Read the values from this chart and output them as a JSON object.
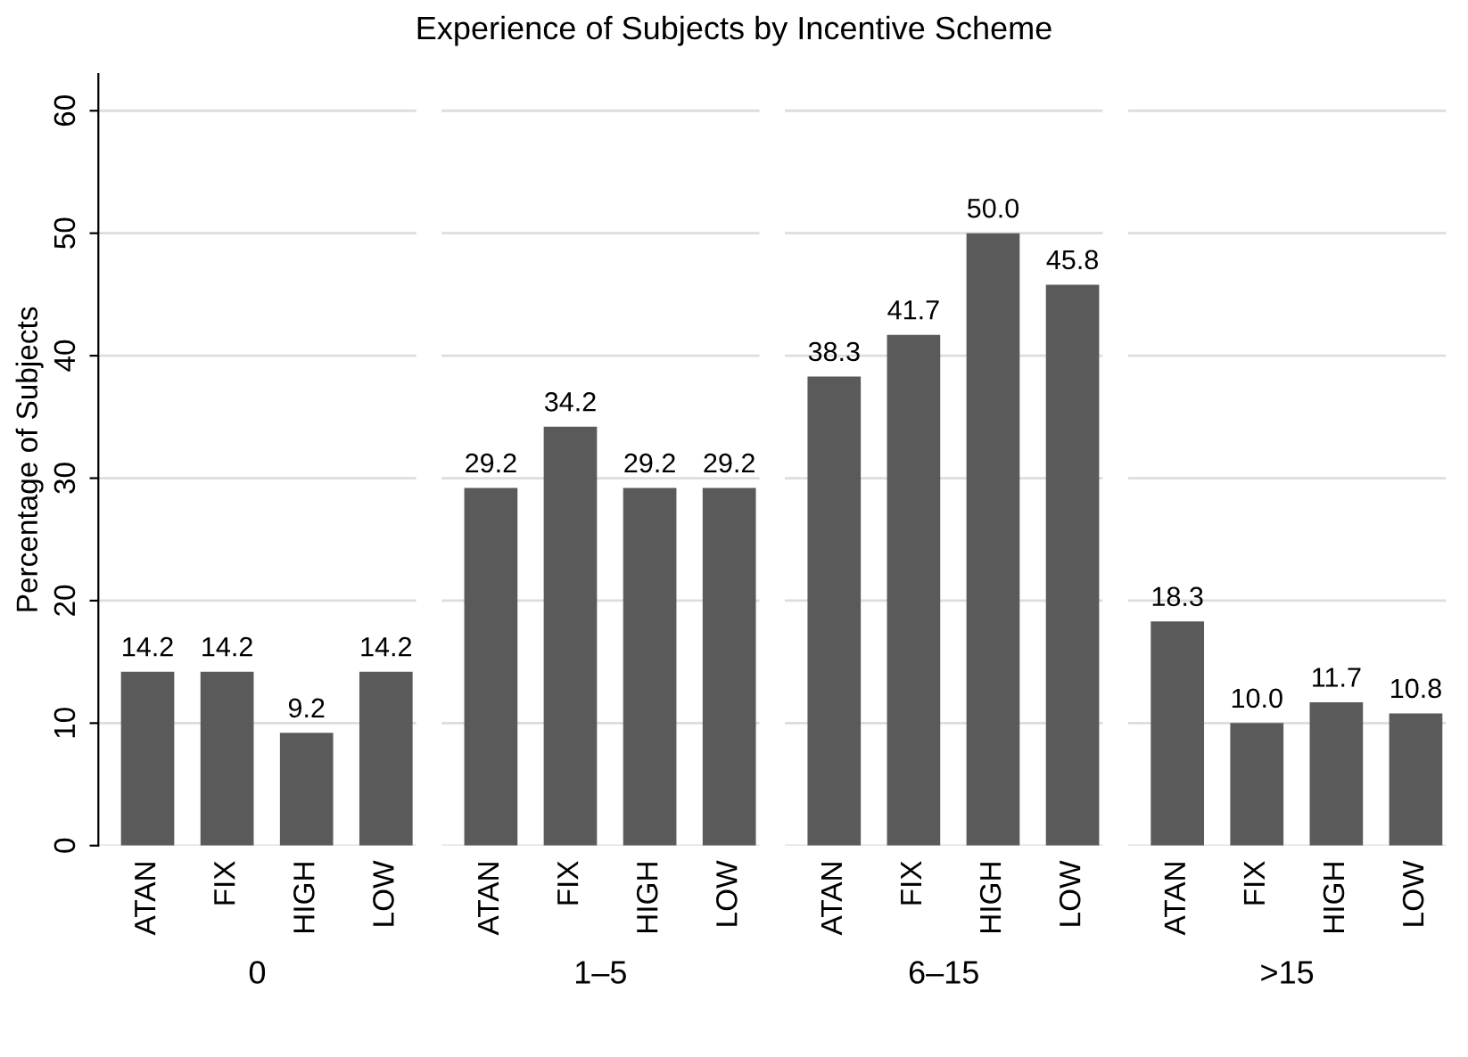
{
  "chart_data": [
    {
      "type": "bar",
      "title": "Experience of Subjects by Incentive Scheme",
      "ylabel": "Percentage of Subjects",
      "xlabel": "0",
      "categories": [
        "ATAN",
        "FIX",
        "HIGH",
        "LOW"
      ],
      "values": [
        14.2,
        14.2,
        9.2,
        14.2
      ],
      "value_labels": [
        "14.2",
        "14.2",
        "9.2",
        "14.2"
      ],
      "color": "#5a5a5a",
      "ylim": [
        0,
        63
      ],
      "yticks": [
        0,
        10,
        20,
        30,
        40,
        50,
        60
      ],
      "grid": "y"
    },
    {
      "type": "bar",
      "xlabel": "1–5",
      "categories": [
        "ATAN",
        "FIX",
        "HIGH",
        "LOW"
      ],
      "values": [
        29.2,
        34.2,
        29.2,
        29.2
      ],
      "value_labels": [
        "29.2",
        "34.2",
        "29.2",
        "29.2"
      ],
      "color": "#5a5a5a",
      "yticks": [
        0,
        10,
        20,
        30,
        40,
        50,
        60
      ],
      "grid": "y",
      "tick_labels": "x"
    },
    {
      "type": "bar",
      "xlabel": "6–15",
      "categories": [
        "ATAN",
        "FIX",
        "HIGH",
        "LOW"
      ],
      "values": [
        38.3,
        41.7,
        50.0,
        45.8
      ],
      "value_labels": [
        "38.3",
        "41.7",
        "50.0",
        "45.8"
      ],
      "color": "#5a5a5a",
      "yticks": [
        0,
        10,
        20,
        30,
        40,
        50,
        60
      ],
      "grid": "y",
      "tick_labels": "x"
    },
    {
      "type": "bar",
      "xlabel": ">15",
      "categories": [
        "ATAN",
        "FIX",
        "HIGH",
        "LOW"
      ],
      "values": [
        18.3,
        10.0,
        11.7,
        10.8
      ],
      "value_labels": [
        "18.3",
        "10.0",
        "11.7",
        "10.8"
      ],
      "color": "#5a5a5a",
      "yticks": [
        0,
        10,
        20,
        30,
        40,
        50,
        60
      ],
      "grid": "y",
      "tick_labels": "x"
    }
  ]
}
